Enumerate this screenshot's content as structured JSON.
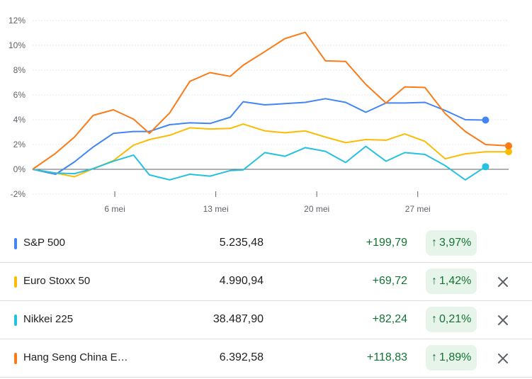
{
  "chart_data": {
    "type": "line",
    "y_ticks": [
      "12%",
      "10%",
      "8%",
      "6%",
      "4%",
      "2%",
      "0%",
      "-2%"
    ],
    "y_values": [
      12,
      10,
      8,
      6,
      4,
      2,
      0,
      -2
    ],
    "ylim": [
      -2.5,
      12.5
    ],
    "x_tick_labels": [
      "6 mei",
      "13 mei",
      "20 mei",
      "27 mei"
    ],
    "x_tick_days": [
      6,
      13,
      20,
      27
    ],
    "xlim": [
      0.3,
      33.3
    ],
    "grid": true,
    "series": [
      {
        "name": "S&P 500",
        "color": "#4285f4",
        "x": [
          0.3,
          1.9,
          3.2,
          4.5,
          5.9,
          7.3,
          8.4,
          9.8,
          11.2,
          12.6,
          14.0,
          14.9,
          16.4,
          17.8,
          19.2,
          20.6,
          22.0,
          23.4,
          24.8,
          26.1,
          27.5,
          28.9,
          30.3,
          31.7
        ],
        "y": [
          0.0,
          -0.4,
          0.6,
          1.8,
          2.9,
          3.05,
          3.05,
          3.6,
          3.75,
          3.7,
          4.2,
          5.45,
          5.2,
          5.3,
          5.4,
          5.7,
          5.4,
          4.6,
          5.35,
          5.35,
          5.4,
          4.75,
          4.0,
          3.97
        ]
      },
      {
        "name": "Euro Stoxx 50",
        "color": "#fbbc04",
        "x": [
          0.3,
          1.9,
          3.2,
          4.5,
          5.9,
          7.3,
          8.4,
          9.8,
          11.2,
          12.6,
          14.0,
          14.9,
          16.4,
          17.8,
          19.2,
          20.6,
          22.0,
          23.4,
          24.8,
          26.1,
          27.5,
          28.9,
          30.3,
          31.7,
          33.3
        ],
        "y": [
          0.0,
          -0.3,
          -0.6,
          0.05,
          0.7,
          1.95,
          2.4,
          2.75,
          3.35,
          3.25,
          3.3,
          3.65,
          3.1,
          2.95,
          3.1,
          2.6,
          2.15,
          2.4,
          2.35,
          2.85,
          2.25,
          0.85,
          1.25,
          1.42,
          1.42
        ]
      },
      {
        "name": "Nikkei 225",
        "color": "#24c1e0",
        "x": [
          0.3,
          1.9,
          3.2,
          4.5,
          5.9,
          7.3,
          8.4,
          9.8,
          11.2,
          12.6,
          14.0,
          14.9,
          16.4,
          17.8,
          19.2,
          20.6,
          22.0,
          23.4,
          24.8,
          26.1,
          27.5,
          28.9,
          30.3,
          31.7
        ],
        "y": [
          0.0,
          -0.3,
          -0.35,
          0.05,
          0.65,
          1.15,
          -0.45,
          -0.85,
          -0.4,
          -0.55,
          -0.1,
          -0.05,
          1.35,
          1.05,
          1.75,
          1.45,
          0.55,
          1.85,
          0.65,
          1.35,
          1.2,
          0.3,
          -0.85,
          0.21
        ]
      },
      {
        "name": "Hang Seng China E…",
        "color": "#fa7b17",
        "x": [
          0.3,
          1.9,
          3.2,
          4.5,
          5.9,
          7.3,
          8.4,
          9.8,
          11.2,
          12.6,
          14.0,
          14.9,
          16.4,
          17.8,
          19.2,
          20.6,
          22.0,
          23.4,
          24.8,
          26.1,
          27.5,
          28.9,
          30.3,
          31.7,
          33.3
        ],
        "y": [
          0.0,
          1.3,
          2.6,
          4.35,
          4.8,
          4.05,
          2.9,
          4.55,
          7.1,
          7.8,
          7.5,
          8.4,
          9.5,
          10.55,
          11.05,
          8.75,
          8.7,
          6.85,
          5.35,
          6.65,
          6.6,
          4.5,
          3.05,
          2.0,
          1.89
        ]
      }
    ]
  },
  "rows": [
    {
      "name": "S&P 500",
      "color": "#4285f4",
      "price": "5.235,48",
      "change": "+199,79",
      "pct": "3,97%",
      "removable": false
    },
    {
      "name": "Euro Stoxx 50",
      "color": "#fbbc04",
      "price": "4.990,94",
      "change": "+69,72",
      "pct": "1,42%",
      "removable": true
    },
    {
      "name": "Nikkei 225",
      "color": "#24c1e0",
      "price": "38.487,90",
      "change": "+82,24",
      "pct": "0,21%",
      "removable": true
    },
    {
      "name": "Hang Seng China E…",
      "color": "#fa7b17",
      "price": "6.392,58",
      "change": "+118,83",
      "pct": "1,89%",
      "removable": true
    }
  ],
  "icons": {
    "up": "arrow-up-icon",
    "remove": "close-icon"
  }
}
